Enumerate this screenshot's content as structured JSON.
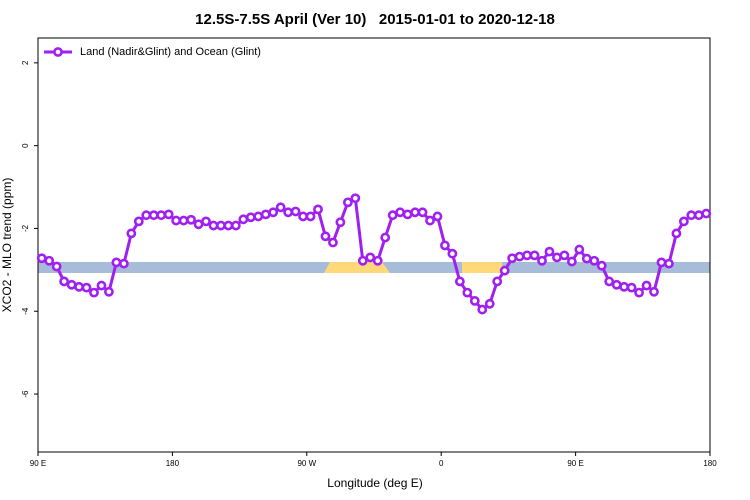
{
  "chart_data": {
    "type": "line",
    "title": "12.5S-7.5S April (Ver 10)   2015-01-01 to 2020-12-18",
    "x_label": "Longitude (deg E)",
    "y_label": "XCO2 - MLO trend (ppm)",
    "xlim": [
      90,
      540
    ],
    "ylim": [
      -7.4,
      2.6
    ],
    "xticks": [
      {
        "value": 90,
        "label": "90 E"
      },
      180,
      {
        "value": 270,
        "label": "90 W"
      },
      {
        "value": 360,
        "label": "0"
      },
      {
        "value": 450,
        "label": "90 E"
      },
      {
        "value": 540,
        "label": "180"
      }
    ],
    "yticks": [
      2,
      0,
      -2,
      -4,
      -6
    ],
    "legend": "top-left",
    "x": [
      92.5,
      97.5,
      102.5,
      107.5,
      112.5,
      117.5,
      122.5,
      127.5,
      132.5,
      137.5,
      142.5,
      147.5,
      152.5,
      157.5,
      162.5,
      167.5,
      172.5,
      177.5,
      182.5,
      187.5,
      192.5,
      197.5,
      202.5,
      207.5,
      212.5,
      217.5,
      222.5,
      227.5,
      232.5,
      237.5,
      242.5,
      247.5,
      252.5,
      257.5,
      262.5,
      267.5,
      272.5,
      277.5,
      282.5,
      287.5,
      292.5,
      297.5,
      302.5,
      307.5,
      312.5,
      317.5,
      322.5,
      327.5,
      332.5,
      337.5,
      342.5,
      347.5,
      352.5,
      357.5,
      362.5,
      367.5,
      372.5,
      377.5,
      382.5,
      387.5,
      392.5,
      397.5,
      402.5,
      407.5,
      412.5,
      417.5,
      422.5,
      427.5,
      432.5,
      437.5,
      442.5,
      447.5,
      452.5,
      457.5,
      462.5,
      467.5,
      472.5,
      477.5,
      482.5,
      487.5,
      492.5,
      497.5,
      502.5,
      507.5,
      512.5,
      517.5,
      522.5,
      527.5,
      532.5,
      537.5
    ],
    "series": [
      {
        "name": "Land (Nadir&Glint) and Ocean (Glint)",
        "color": "#a020f0",
        "values": [
          -2.72,
          -2.78,
          -2.92,
          -3.28,
          -3.36,
          -3.41,
          -3.43,
          -3.55,
          -3.38,
          -3.53,
          -2.82,
          -2.85,
          -2.12,
          -1.83,
          -1.68,
          -1.68,
          -1.68,
          -1.66,
          -1.81,
          -1.81,
          -1.79,
          -1.9,
          -1.83,
          -1.93,
          -1.93,
          -1.93,
          -1.93,
          -1.78,
          -1.73,
          -1.71,
          -1.66,
          -1.61,
          -1.49,
          -1.61,
          -1.59,
          -1.71,
          -1.71,
          -1.54,
          -2.19,
          -2.34,
          -1.85,
          -1.37,
          -1.27,
          -2.78,
          -2.7,
          -2.78,
          -2.22,
          -1.68,
          -1.61,
          -1.66,
          -1.61,
          -1.61,
          -1.81,
          -1.71,
          -2.41,
          -2.61,
          -3.28,
          -3.55,
          -3.75,
          -3.96,
          -3.82,
          -3.28,
          -3.02,
          -2.72,
          -2.68,
          -2.65,
          -2.65,
          -2.78,
          -2.56,
          -2.7,
          -2.65,
          -2.8,
          -2.51,
          -2.73,
          -2.78,
          -2.9,
          -3.28,
          -3.36,
          -3.41,
          -3.43,
          -3.55,
          -3.38,
          -3.53,
          -2.82,
          -2.85,
          -2.12,
          -1.83,
          -1.68,
          -1.68,
          -1.64
        ]
      }
    ]
  }
}
